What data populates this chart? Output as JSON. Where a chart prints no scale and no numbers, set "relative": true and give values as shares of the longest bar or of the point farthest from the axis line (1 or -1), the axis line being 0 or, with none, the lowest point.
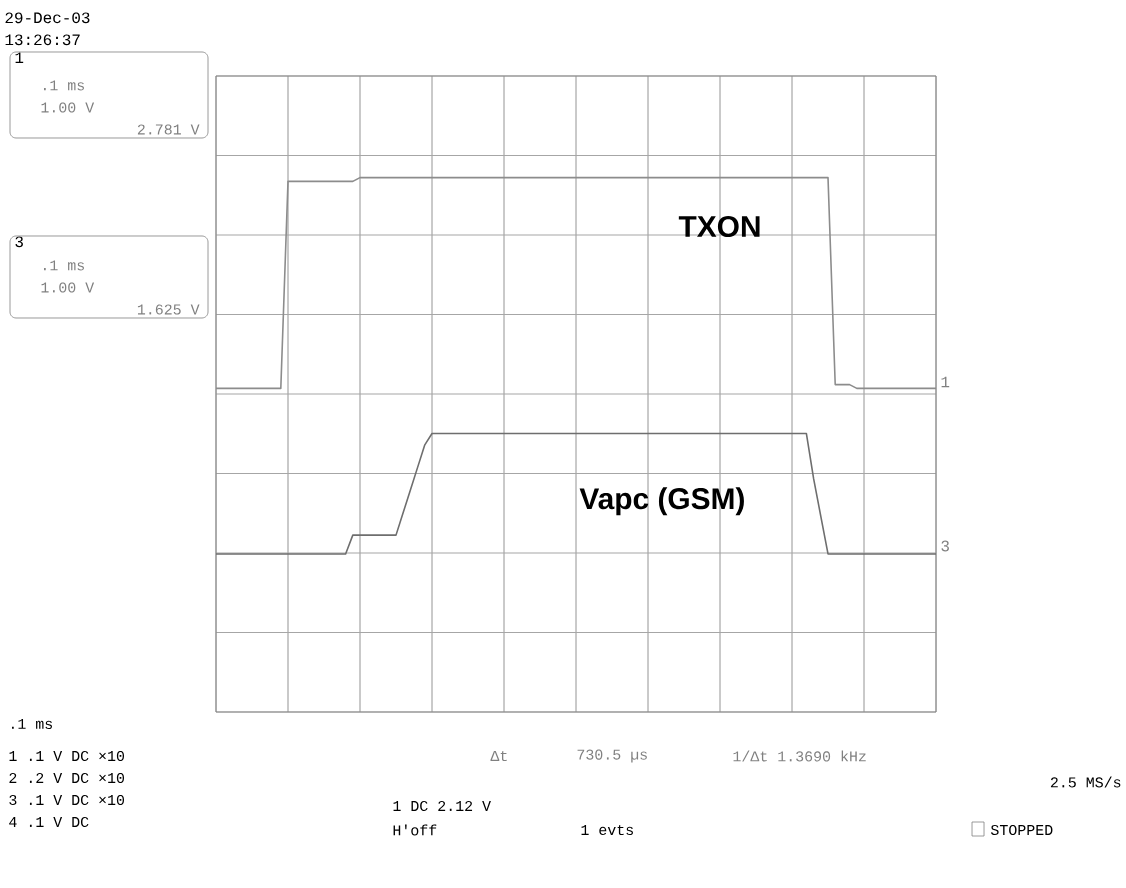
{
  "chart_data": {
    "type": "line",
    "relative": true,
    "grid": true,
    "categories": [
      null,
      null,
      null,
      null,
      null,
      null,
      null,
      null,
      null,
      null,
      null,
      null,
      null,
      null,
      null,
      null,
      null,
      null,
      null,
      null,
      null,
      null,
      null,
      null,
      null,
      null,
      null,
      null,
      null,
      null,
      null,
      null,
      null,
      null,
      null,
      null,
      null,
      null,
      null,
      null,
      null,
      null,
      null,
      null,
      null,
      null,
      null,
      null,
      null,
      null,
      null,
      null,
      null,
      null,
      null,
      null,
      null,
      null,
      null,
      null,
      null,
      null,
      null,
      null,
      null,
      null,
      null,
      null,
      null,
      null,
      null,
      null,
      null,
      null,
      null,
      null,
      null,
      null,
      null,
      null,
      null,
      null,
      null,
      null,
      null,
      null,
      null,
      null,
      null,
      null,
      null,
      null,
      null,
      null,
      null,
      null,
      null,
      null,
      null,
      null,
      null
    ],
    "series": [
      {
        "name": "TXON",
        "color": "#8c8c8c",
        "values": [
          0.44,
          0.44,
          0.44,
          0.44,
          0.44,
          0.44,
          0.44,
          0.44,
          0.44,
          0.44,
          0.99,
          0.99,
          0.99,
          0.99,
          0.99,
          0.99,
          0.99,
          0.99,
          0.99,
          0.99,
          1,
          1,
          1,
          1,
          1,
          1,
          1,
          1,
          1,
          1,
          1,
          1,
          1,
          1,
          1,
          1,
          1,
          1,
          1,
          1,
          1,
          1,
          1,
          1,
          1,
          1,
          1,
          1,
          1,
          1,
          1,
          1,
          1,
          1,
          1,
          1,
          1,
          1,
          1,
          1,
          1,
          1,
          1,
          1,
          1,
          1,
          1,
          1,
          1,
          1,
          1,
          1,
          1,
          1,
          1,
          1,
          1,
          1,
          1,
          1,
          1,
          1,
          1,
          1,
          1,
          1,
          0.45,
          0.45,
          0.45,
          0.44,
          0.44,
          0.44,
          0.44,
          0.44,
          0.44,
          0.44,
          0.44,
          0.44,
          0.44,
          0.44,
          0.44
        ]
      },
      {
        "name": "Vapc (GSM)",
        "color": "#6e6e6e",
        "values": [
          0,
          0,
          0,
          0,
          0,
          0,
          0,
          0,
          0,
          0,
          0,
          0,
          0,
          0,
          0,
          0,
          0,
          0,
          0,
          0.05,
          0.05,
          0.05,
          0.05,
          0.05,
          0.05,
          0.05,
          0.11,
          0.17,
          0.23,
          0.29,
          0.32,
          0.32,
          0.32,
          0.32,
          0.32,
          0.32,
          0.32,
          0.32,
          0.32,
          0.32,
          0.32,
          0.32,
          0.32,
          0.32,
          0.32,
          0.32,
          0.32,
          0.32,
          0.32,
          0.32,
          0.32,
          0.32,
          0.32,
          0.32,
          0.32,
          0.32,
          0.32,
          0.32,
          0.32,
          0.32,
          0.32,
          0.32,
          0.32,
          0.32,
          0.32,
          0.32,
          0.32,
          0.32,
          0.32,
          0.32,
          0.32,
          0.32,
          0.32,
          0.32,
          0.32,
          0.32,
          0.32,
          0.32,
          0.32,
          0.32,
          0.32,
          0.32,
          0.32,
          0.2,
          0.1,
          0,
          0,
          0,
          0,
          0,
          0,
          0,
          0,
          0,
          0,
          0,
          0,
          0,
          0,
          0,
          0
        ]
      }
    ],
    "annotations": [
      "29-Dec-03",
      "13:26:37",
      "1",
      ".1 ms",
      "1.00 V",
      "2.781 V",
      "3",
      ".1 ms",
      "1.00 V",
      "1.625 V",
      "1",
      "3",
      ".1 ms",
      "1 .1 V DC ×10",
      "2 .2 V DC ×10",
      "3 .1 V DC ×10",
      "4 .1 V DC",
      "Δt",
      "730.5 µs",
      "1/Δt 1.3690 kHz",
      "2.5 MS/s",
      "1 DC 2.12 V",
      "H'off",
      "1 evts",
      "STOPPED"
    ]
  }
}
